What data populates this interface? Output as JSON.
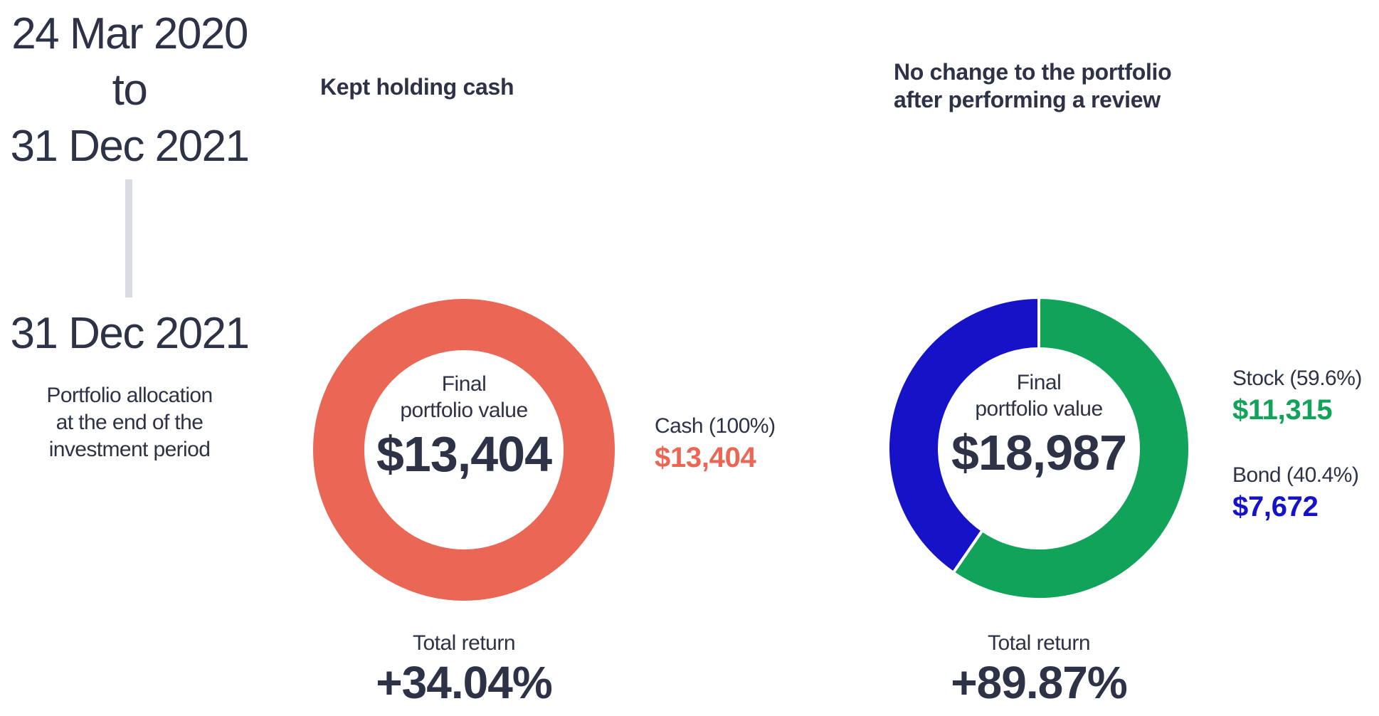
{
  "colors": {
    "text": "#2D3247",
    "timeline_bar": "#DBDCE1",
    "coral": "#E96754",
    "green": "#12A35B",
    "blue": "#1512C7"
  },
  "timeline": {
    "period_lines": [
      "24 Mar 2020",
      "to",
      "31 Dec 2021"
    ],
    "snapshot_date": "31 Dec 2021",
    "description_lines": [
      "Portfolio allocation",
      "at the end of the",
      "investment period"
    ]
  },
  "scenarios": [
    {
      "title_lines": [
        "Kept holding cash"
      ],
      "center_label_lines": [
        "Final",
        "portfolio value"
      ],
      "center_value": "$13,404",
      "legend": [
        {
          "name": "Cash (100%)",
          "value": "$13,404",
          "color": "#E96754"
        }
      ],
      "total_return_label": "Total return",
      "total_return_value": "+34.04%"
    },
    {
      "title_lines": [
        "No change to the portfolio",
        "after performing a review"
      ],
      "center_label_lines": [
        "Final",
        "portfolio value"
      ],
      "center_value": "$18,987",
      "legend": [
        {
          "name": "Stock (59.6%)",
          "value": "$11,315",
          "color": "#12A35B"
        },
        {
          "name": "Bond (40.4%)",
          "value": "$7,672",
          "color": "#1512C7"
        }
      ],
      "total_return_label": "Total return",
      "total_return_value": "+89.87%"
    }
  ],
  "chart_data": [
    {
      "type": "pie",
      "subtype": "donut",
      "title": "Kept holding cash",
      "labels": [
        "Cash"
      ],
      "values": [
        100
      ],
      "value_labels": [
        "$13,404"
      ],
      "colors": [
        "#E96754"
      ],
      "center_label": "Final portfolio value",
      "center_value": "$13,404",
      "total_return": "+34.04%",
      "legend_position": "right",
      "start_angle_deg": 0,
      "direction": "clockwise"
    },
    {
      "type": "pie",
      "subtype": "donut",
      "title": "No change to the portfolio after performing a review",
      "labels": [
        "Stock",
        "Bond"
      ],
      "values": [
        59.6,
        40.4
      ],
      "value_labels": [
        "$11,315",
        "$7,672"
      ],
      "colors": [
        "#12A35B",
        "#1512C7"
      ],
      "center_label": "Final portfolio value",
      "center_value": "$18,987",
      "total_return": "+89.87%",
      "legend_position": "right",
      "start_angle_deg": 0,
      "direction": "clockwise"
    }
  ]
}
